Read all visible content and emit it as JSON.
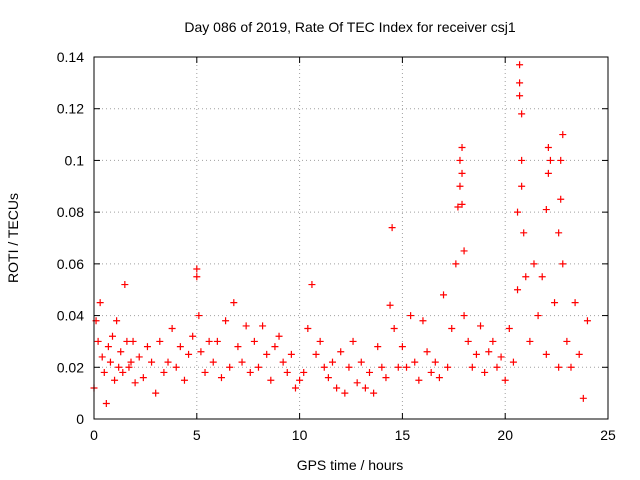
{
  "chart_data": {
    "type": "scatter",
    "title": "Day 086 of 2019, Rate Of TEC Index for receiver csj1",
    "xlabel": "GPS time / hours",
    "ylabel": "ROTI / TECUs",
    "xlim": [
      0,
      25
    ],
    "ylim": [
      0,
      0.14
    ],
    "grid": true,
    "marker": "+",
    "color": "#ff0000",
    "x_ticks": [
      0,
      5,
      10,
      15,
      20,
      25
    ],
    "x_tick_labels": [
      "0",
      "5",
      "10",
      "15",
      "20",
      "25"
    ],
    "y_ticks": [
      0,
      0.02,
      0.04,
      0.06,
      0.08,
      0.1,
      0.12,
      0.14
    ],
    "y_tick_labels": [
      "0",
      "0.02",
      "0.04",
      "0.06",
      "0.08",
      "0.1",
      "0.12",
      "0.14"
    ],
    "series": [
      {
        "name": "ROTI",
        "x": [
          0.0,
          0.1,
          0.2,
          0.3,
          0.4,
          0.5,
          0.6,
          0.7,
          0.8,
          0.9,
          1.0,
          1.1,
          1.2,
          1.3,
          1.4,
          1.5,
          1.6,
          1.7,
          1.8,
          1.9,
          2.0,
          2.2,
          2.4,
          2.6,
          2.8,
          3.0,
          3.2,
          3.4,
          3.6,
          3.8,
          4.0,
          4.2,
          4.4,
          4.6,
          4.8,
          5.0,
          5.0,
          5.1,
          5.2,
          5.4,
          5.6,
          5.8,
          6.0,
          6.2,
          6.4,
          6.6,
          6.8,
          7.0,
          7.2,
          7.4,
          7.6,
          7.8,
          8.0,
          8.2,
          8.4,
          8.6,
          8.8,
          9.0,
          9.2,
          9.4,
          9.6,
          9.8,
          10.0,
          10.2,
          10.4,
          10.6,
          10.8,
          11.0,
          11.2,
          11.4,
          11.6,
          11.8,
          12.0,
          12.2,
          12.4,
          12.6,
          12.8,
          13.0,
          13.2,
          13.4,
          13.6,
          13.8,
          14.0,
          14.2,
          14.4,
          14.5,
          14.6,
          14.8,
          15.0,
          15.2,
          15.4,
          15.6,
          15.8,
          16.0,
          16.2,
          16.4,
          16.6,
          16.8,
          17.0,
          17.2,
          17.4,
          17.6,
          17.7,
          17.8,
          17.8,
          17.9,
          17.9,
          17.9,
          18.0,
          18.0,
          18.2,
          18.4,
          18.6,
          18.8,
          19.0,
          19.2,
          19.4,
          19.6,
          19.8,
          20.0,
          20.2,
          20.4,
          20.6,
          20.6,
          20.7,
          20.7,
          20.7,
          20.8,
          20.8,
          20.8,
          20.9,
          21.0,
          21.2,
          21.4,
          21.6,
          21.8,
          22.0,
          22.0,
          22.1,
          22.1,
          22.2,
          22.4,
          22.6,
          22.6,
          22.7,
          22.7,
          22.8,
          22.8,
          23.0,
          23.2,
          23.4,
          23.6,
          23.8,
          24.0
        ],
        "y": [
          0.012,
          0.038,
          0.03,
          0.045,
          0.024,
          0.018,
          0.006,
          0.028,
          0.022,
          0.032,
          0.015,
          0.038,
          0.02,
          0.026,
          0.018,
          0.052,
          0.03,
          0.02,
          0.022,
          0.03,
          0.014,
          0.024,
          0.016,
          0.028,
          0.022,
          0.01,
          0.03,
          0.018,
          0.022,
          0.035,
          0.02,
          0.028,
          0.015,
          0.025,
          0.032,
          0.055,
          0.058,
          0.04,
          0.026,
          0.018,
          0.03,
          0.022,
          0.03,
          0.016,
          0.038,
          0.02,
          0.045,
          0.028,
          0.022,
          0.036,
          0.018,
          0.03,
          0.02,
          0.036,
          0.025,
          0.015,
          0.028,
          0.032,
          0.022,
          0.018,
          0.025,
          0.012,
          0.015,
          0.018,
          0.035,
          0.052,
          0.025,
          0.03,
          0.02,
          0.016,
          0.022,
          0.012,
          0.026,
          0.01,
          0.02,
          0.03,
          0.014,
          0.022,
          0.012,
          0.018,
          0.01,
          0.028,
          0.02,
          0.016,
          0.044,
          0.074,
          0.035,
          0.02,
          0.028,
          0.02,
          0.04,
          0.022,
          0.015,
          0.038,
          0.026,
          0.018,
          0.022,
          0.016,
          0.048,
          0.02,
          0.035,
          0.06,
          0.082,
          0.09,
          0.1,
          0.105,
          0.095,
          0.083,
          0.065,
          0.04,
          0.03,
          0.02,
          0.025,
          0.036,
          0.018,
          0.026,
          0.03,
          0.02,
          0.024,
          0.015,
          0.035,
          0.022,
          0.05,
          0.08,
          0.137,
          0.13,
          0.125,
          0.118,
          0.1,
          0.09,
          0.072,
          0.055,
          0.03,
          0.06,
          0.04,
          0.055,
          0.025,
          0.081,
          0.095,
          0.105,
          0.1,
          0.045,
          0.02,
          0.072,
          0.085,
          0.1,
          0.11,
          0.06,
          0.03,
          0.02,
          0.045,
          0.025,
          0.008,
          0.038
        ]
      }
    ]
  }
}
